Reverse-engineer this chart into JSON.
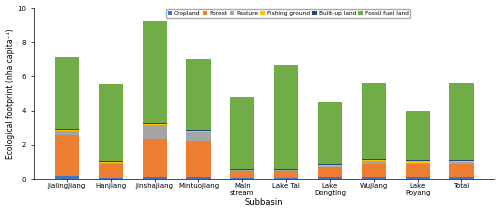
{
  "categories": [
    "Jialingjiang",
    "Hanjiang",
    "Jinshajiang",
    "Mintuojiang",
    "Main\nstream",
    "Lake Tai",
    "Lake\nDongting",
    "Wujiang",
    "Lake\nPoyang",
    "Total"
  ],
  "components": {
    "Cropland": [
      0.15,
      0.05,
      0.1,
      0.1,
      0.05,
      0.05,
      0.1,
      0.1,
      0.1,
      0.1
    ],
    "Forest": [
      2.4,
      0.85,
      2.25,
      2.1,
      0.4,
      0.4,
      0.6,
      0.75,
      0.8,
      0.8
    ],
    "Pasture": [
      0.25,
      0.05,
      0.8,
      0.55,
      0.05,
      0.05,
      0.05,
      0.2,
      0.05,
      0.1
    ],
    "Fishing ground": [
      0.05,
      0.05,
      0.05,
      0.05,
      0.05,
      0.05,
      0.05,
      0.05,
      0.1,
      0.05
    ],
    "Built-up land": [
      0.05,
      0.05,
      0.05,
      0.05,
      0.05,
      0.05,
      0.1,
      0.05,
      0.05,
      0.05
    ],
    "Fossil fuel land": [
      4.25,
      4.5,
      6.0,
      4.15,
      4.2,
      6.05,
      3.6,
      4.45,
      2.9,
      4.5
    ]
  },
  "colors": {
    "Cropland": "#4472C4",
    "Forest": "#ED7D31",
    "Pasture": "#A5A5A5",
    "Fishing ground": "#FFC000",
    "Built-up land": "#264478",
    "Fossil fuel land": "#70AD47"
  },
  "ylabel": "Ecological footprint (nha capita⁻¹)",
  "xlabel": "Subbasin",
  "ylim": [
    0,
    10
  ],
  "yticks": [
    0,
    2,
    4,
    6,
    8,
    10
  ],
  "bar_width": 0.55,
  "figsize": [
    5.0,
    2.13
  ],
  "dpi": 100,
  "legend_fontsize": 4.2,
  "axis_label_fontsize": 5.5,
  "tick_fontsize": 5.0,
  "xlabel_fontsize": 6.0
}
